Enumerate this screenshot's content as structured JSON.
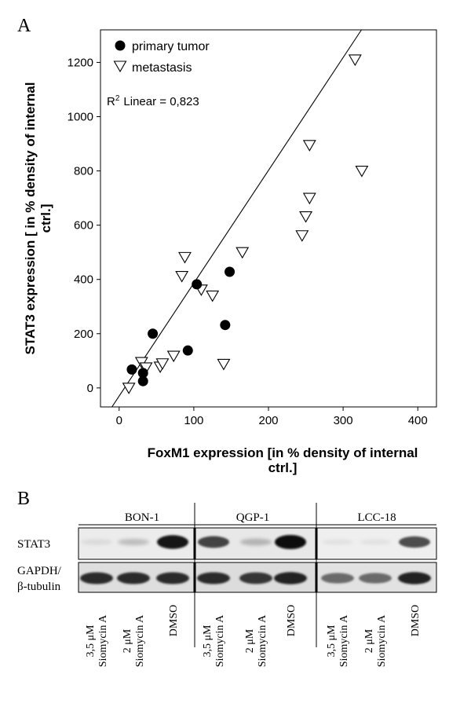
{
  "panel_a": {
    "label": "A",
    "ylabel_line1": "STAT3 expression [ in % density of internal",
    "ylabel_line2": "ctrl.]",
    "xlabel_line1": "FoxM1 expression [in % density of internal",
    "xlabel_line2": "ctrl.]",
    "r2_prefix": "R",
    "r2_sup": "2",
    "r2_text": "Linear = 0,823"
  },
  "chart_data": {
    "type": "scatter",
    "xlim": [
      -25,
      425
    ],
    "ylim": [
      -70,
      1320
    ],
    "xticks": [
      "0",
      "100",
      "200",
      "300",
      "400"
    ],
    "xtick_values": [
      0,
      100,
      200,
      300,
      400
    ],
    "yticks": [
      "0",
      "200",
      "400",
      "600",
      "800",
      "1000",
      "1200"
    ],
    "ytick_values": [
      0,
      200,
      400,
      600,
      800,
      1000,
      1200
    ],
    "grid": false,
    "legend_placement": "top-left",
    "series": [
      {
        "name": "primary tumor",
        "marker": "filled-circle",
        "points": [
          [
            17,
            68
          ],
          [
            32,
            55
          ],
          [
            32,
            25
          ],
          [
            45,
            200
          ],
          [
            92,
            138
          ],
          [
            104,
            382
          ],
          [
            142,
            232
          ],
          [
            148,
            428
          ]
        ]
      },
      {
        "name": "metastasis",
        "marker": "open-down-triangle",
        "points": [
          [
            13,
            0
          ],
          [
            30,
            95
          ],
          [
            36,
            75
          ],
          [
            55,
            78
          ],
          [
            58,
            90
          ],
          [
            73,
            118
          ],
          [
            84,
            412
          ],
          [
            88,
            482
          ],
          [
            110,
            362
          ],
          [
            125,
            340
          ],
          [
            140,
            88
          ],
          [
            165,
            500
          ],
          [
            245,
            562
          ],
          [
            250,
            632
          ],
          [
            255,
            700
          ],
          [
            255,
            895
          ],
          [
            316,
            1210
          ],
          [
            325,
            800
          ]
        ]
      }
    ],
    "fit_line": {
      "label": "R² Linear = 0,823",
      "intercept": -30,
      "slope": 4.16
    }
  },
  "panel_b": {
    "label": "B",
    "groups": [
      "BON-1",
      "QGP-1",
      "LCC-18"
    ],
    "row_labels": [
      "STAT3",
      "GAPDH/",
      "β-tubulin"
    ],
    "lanes": [
      {
        "line1": "3,5 μM",
        "line2": "Siomycin A"
      },
      {
        "line1": "2 μM",
        "line2": "Siomycin A"
      },
      {
        "line1": "DMSO",
        "line2": ""
      },
      {
        "line1": "3,5 μM",
        "line2": "Siomycin A"
      },
      {
        "line1": "2 μM",
        "line2": "Siomycin A"
      },
      {
        "line1": "DMSO",
        "line2": ""
      },
      {
        "line1": "3,5 μM",
        "line2": "Siomycin A"
      },
      {
        "line1": "2 μM",
        "line2": "Siomycin A"
      },
      {
        "line1": "DMSO",
        "line2": ""
      }
    ],
    "stat3_intensity": [
      0.08,
      0.2,
      0.95,
      0.75,
      0.25,
      1.0,
      0.05,
      0.05,
      0.7
    ],
    "loading_intensity": [
      0.85,
      0.85,
      0.85,
      0.85,
      0.8,
      0.9,
      0.55,
      0.55,
      0.9
    ]
  }
}
